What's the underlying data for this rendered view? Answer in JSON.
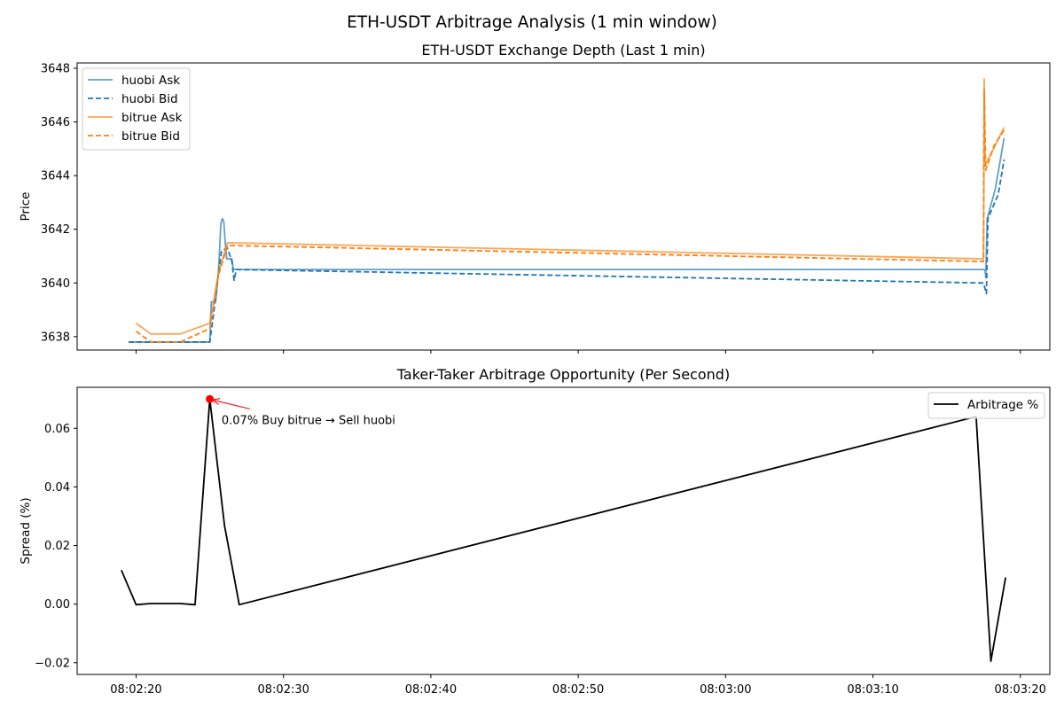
{
  "figure": {
    "suptitle": "ETH-USDT Arbitrage Analysis (1 min window)"
  },
  "chart_data": [
    {
      "type": "line",
      "title": "ETH-USDT Exchange Depth (Last 1 min)",
      "xlabel": "",
      "ylabel": "Price",
      "x_unit": "time (HH:MM:SS)",
      "xlim": [
        "08:02:16",
        "08:03:22"
      ],
      "ylim": [
        3637.5,
        3648.2
      ],
      "yticks": [
        3638,
        3640,
        3642,
        3644,
        3646,
        3648
      ],
      "xticks": [
        "08:02:20",
        "08:02:30",
        "08:02:40",
        "08:02:50",
        "08:03:00",
        "08:03:10",
        "08:03:20"
      ],
      "show_xtick_labels": false,
      "grid": false,
      "legend": "top-left",
      "series": [
        {
          "name": "huobi Ask",
          "color": "#1f77b4",
          "dash": "solid",
          "opacity": 0.7,
          "points": [
            [
              "08:02:19.5",
              3637.8
            ],
            [
              "08:02:25.0",
              3637.8
            ],
            [
              "08:02:25.1",
              3639.3
            ],
            [
              "08:02:25.4",
              3639.3
            ],
            [
              "08:02:25.6",
              3640.5
            ],
            [
              "08:02:25.75",
              3642.2
            ],
            [
              "08:02:25.85",
              3642.4
            ],
            [
              "08:02:25.95",
              3642.3
            ],
            [
              "08:02:26.05",
              3641.5
            ],
            [
              "08:02:26.15",
              3640.9
            ],
            [
              "08:02:26.5",
              3640.9
            ],
            [
              "08:02:26.6",
              3640.5
            ],
            [
              "08:02:26.8",
              3640.5
            ],
            [
              "08:03:17.6",
              3640.5
            ],
            [
              "08:03:17.65",
              3640.2
            ],
            [
              "08:03:17.75",
              3642.4
            ],
            [
              "08:03:18.3",
              3643.5
            ],
            [
              "08:03:18.9",
              3645.4
            ]
          ]
        },
        {
          "name": "huobi Bid",
          "color": "#1f77b4",
          "dash": "dashed",
          "opacity": 1,
          "points": [
            [
              "08:02:19.5",
              3637.8
            ],
            [
              "08:02:25.0",
              3637.8
            ],
            [
              "08:02:25.2",
              3638.6
            ],
            [
              "08:02:25.6",
              3640.4
            ],
            [
              "08:02:25.8",
              3641.2
            ],
            [
              "08:02:26.2",
              3641.3
            ],
            [
              "08:02:26.5",
              3640.8
            ],
            [
              "08:02:26.65",
              3640.1
            ],
            [
              "08:02:26.8",
              3640.5
            ],
            [
              "08:03:17.5",
              3640.0
            ],
            [
              "08:03:17.7",
              3639.6
            ],
            [
              "08:03:17.8",
              3642.4
            ],
            [
              "08:03:18.5",
              3643.3
            ],
            [
              "08:03:18.9",
              3644.6
            ]
          ]
        },
        {
          "name": "bitrue Ask",
          "color": "#ff7f0e",
          "dash": "solid",
          "opacity": 0.7,
          "points": [
            [
              "08:02:20.0",
              3638.5
            ],
            [
              "08:02:21.0",
              3638.1
            ],
            [
              "08:02:23.0",
              3638.1
            ],
            [
              "08:02:25.0",
              3638.5
            ],
            [
              "08:02:25.6",
              3640.4
            ],
            [
              "08:02:26.2",
              3641.5
            ],
            [
              "08:03:17.5",
              3640.9
            ],
            [
              "08:03:17.55",
              3647.6
            ],
            [
              "08:03:17.6",
              3644.4
            ],
            [
              "08:03:18.0",
              3644.8
            ],
            [
              "08:03:18.9",
              3645.8
            ]
          ]
        },
        {
          "name": "bitrue Bid",
          "color": "#ff7f0e",
          "dash": "dashed",
          "opacity": 1,
          "points": [
            [
              "08:02:20.0",
              3638.2
            ],
            [
              "08:02:21.0",
              3637.8
            ],
            [
              "08:02:23.0",
              3637.8
            ],
            [
              "08:02:25.0",
              3638.3
            ],
            [
              "08:02:25.6",
              3640.3
            ],
            [
              "08:02:26.2",
              3641.4
            ],
            [
              "08:03:17.5",
              3640.8
            ],
            [
              "08:03:17.55",
              3647.2
            ],
            [
              "08:03:17.65",
              3644.2
            ],
            [
              "08:03:18.2",
              3645.1
            ],
            [
              "08:03:18.9",
              3645.7
            ]
          ]
        }
      ]
    },
    {
      "type": "line",
      "title": "Taker-Taker Arbitrage Opportunity (Per Second)",
      "xlabel": "",
      "ylabel": "Spread (%)",
      "x_unit": "time (HH:MM:SS)",
      "xlim": [
        "08:02:16",
        "08:03:22"
      ],
      "ylim": [
        -0.024,
        0.074
      ],
      "yticks": [
        -0.02,
        0.0,
        0.02,
        0.04,
        0.06
      ],
      "ytick_labels": [
        "−0.02",
        "0.00",
        "0.02",
        "0.04",
        "0.06"
      ],
      "xticks": [
        "08:02:20",
        "08:02:30",
        "08:02:40",
        "08:02:50",
        "08:03:00",
        "08:03:10",
        "08:03:20"
      ],
      "show_xtick_labels": true,
      "grid": false,
      "legend": "top-right",
      "series": [
        {
          "name": "Arbitrage %",
          "color": "#000000",
          "dash": "solid",
          "opacity": 1,
          "points": [
            [
              "08:02:19",
              0.0116
            ],
            [
              "08:02:20",
              -0.0002
            ],
            [
              "08:02:21",
              0.0002
            ],
            [
              "08:02:22",
              0.0002
            ],
            [
              "08:02:23",
              0.0002
            ],
            [
              "08:02:24",
              -0.0002
            ],
            [
              "08:02:25",
              0.07
            ],
            [
              "08:02:26",
              0.0268
            ],
            [
              "08:02:27",
              -0.0002
            ],
            [
              "08:03:17",
              0.064
            ],
            [
              "08:03:18",
              -0.0195
            ],
            [
              "08:03:19",
              0.0091
            ]
          ]
        }
      ],
      "annotation": {
        "point": [
          "08:02:25",
          0.07
        ],
        "text": "0.07% Buy bitrue → Sell huobi",
        "text_anchor": [
          "08:02:25.8",
          0.0642
        ],
        "color": "#ff0000"
      }
    }
  ]
}
